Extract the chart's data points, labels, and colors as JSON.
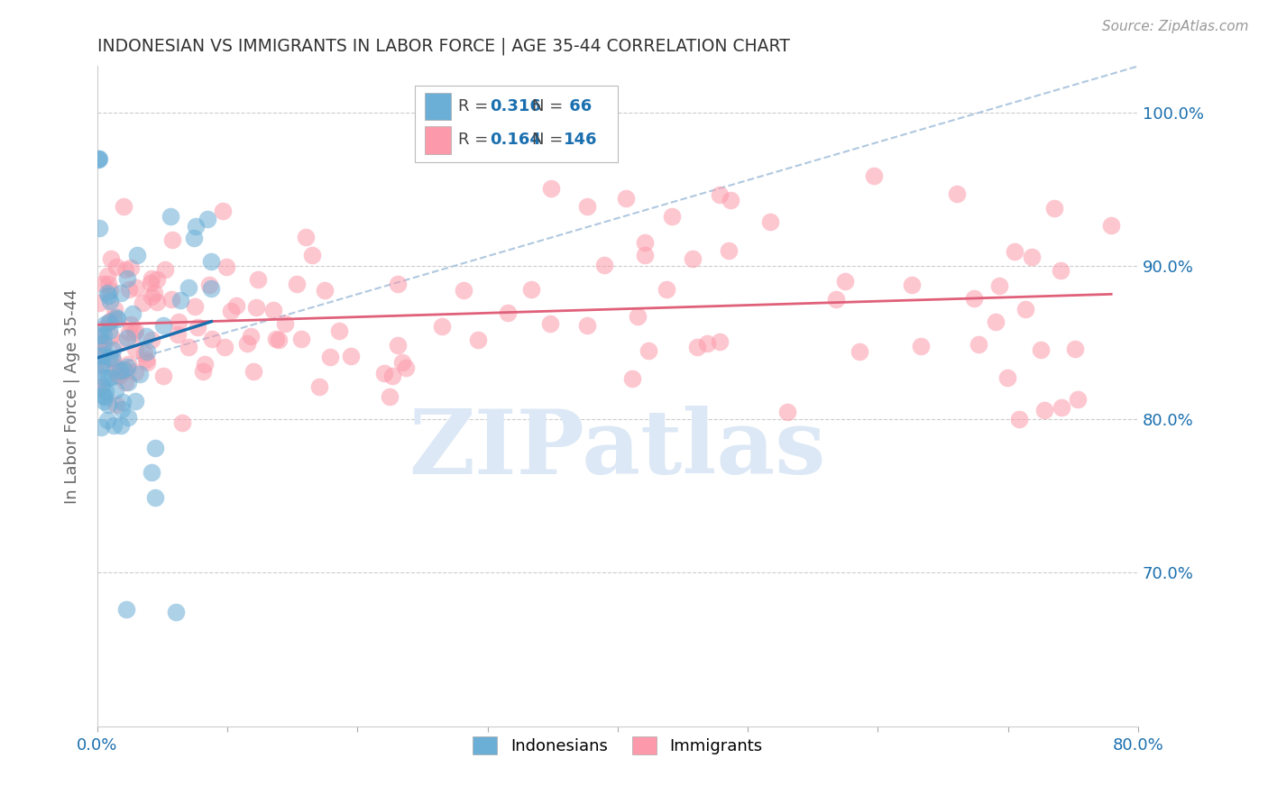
{
  "title": "INDONESIAN VS IMMIGRANTS IN LABOR FORCE | AGE 35-44 CORRELATION CHART",
  "source": "Source: ZipAtlas.com",
  "ylabel": "In Labor Force | Age 35-44",
  "xmin": 0.0,
  "xmax": 0.8,
  "ymin": 0.6,
  "ymax": 1.03,
  "yticks": [
    0.7,
    0.8,
    0.9,
    1.0
  ],
  "ytick_labels": [
    "70.0%",
    "80.0%",
    "90.0%",
    "100.0%"
  ],
  "xtick_vals": [
    0.0,
    0.1,
    0.2,
    0.3,
    0.4,
    0.5,
    0.6,
    0.7,
    0.8
  ],
  "xtick_labels": [
    "0.0%",
    "",
    "",
    "",
    "",
    "",
    "",
    "",
    "80.0%"
  ],
  "indonesian_color": "#6baed6",
  "immigrant_color": "#fc9aab",
  "indonesian_line_color": "#1a6faf",
  "immigrant_line_color": "#e0607a",
  "diagonal_color": "#b0c8e0",
  "legend_text_color": "#1a6faf",
  "legend_label_color": "#444444",
  "title_color": "#333333",
  "axis_label_color": "#666666",
  "tick_color": "#1a6faf",
  "grid_color": "#cccccc",
  "indonesian_R": 0.316,
  "indonesian_N": 66,
  "immigrant_R": 0.164,
  "immigrant_N": 146,
  "watermark": "ZIPatlas",
  "watermark_color": "#dce8f5"
}
